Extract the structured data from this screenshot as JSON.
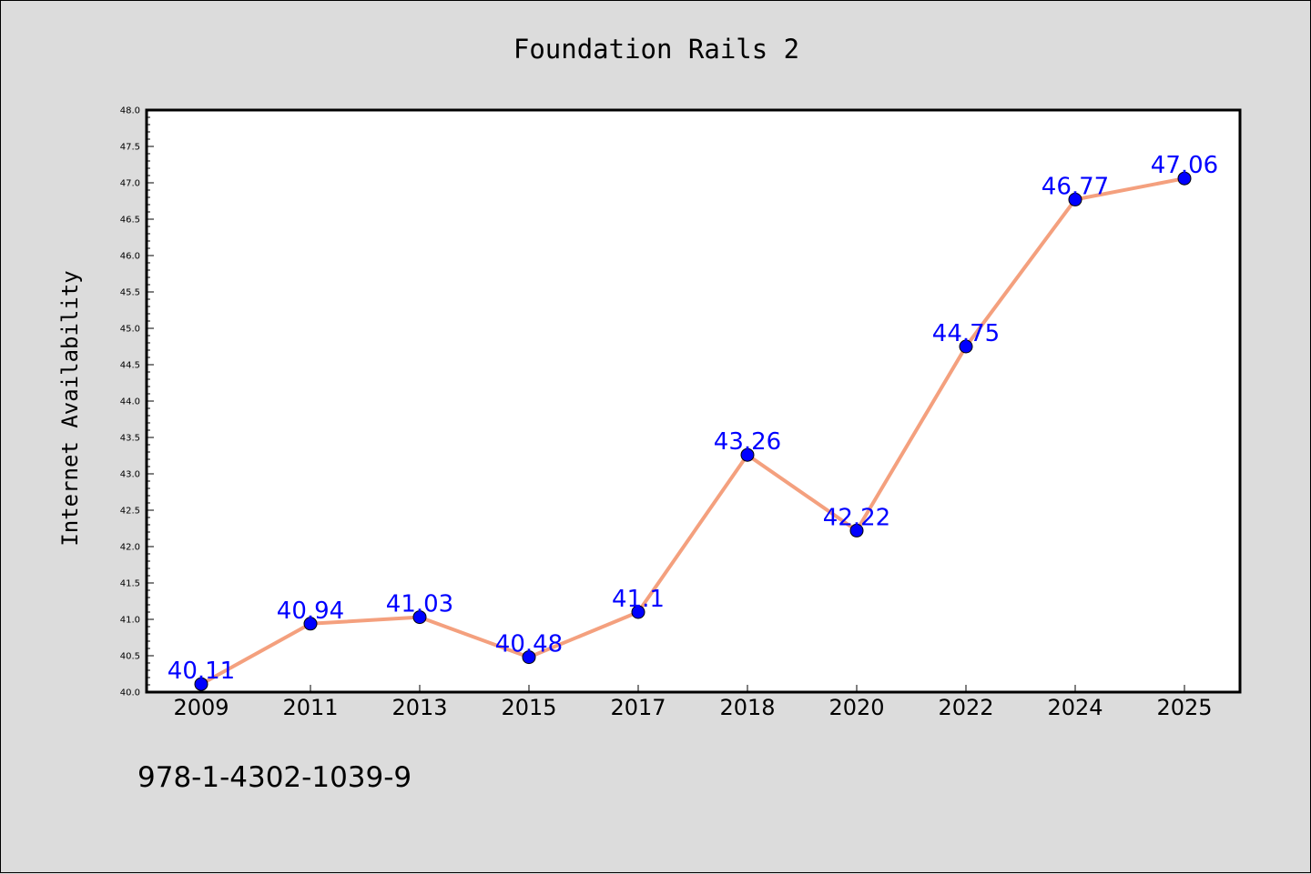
{
  "chart_data": {
    "type": "line",
    "title": "Foundation Rails 2",
    "xlabel": "",
    "ylabel": "Internet Availability",
    "categories": [
      "2009",
      "2011",
      "2013",
      "2015",
      "2017",
      "2018",
      "2020",
      "2022",
      "2024",
      "2025"
    ],
    "series": [
      {
        "values": [
          40.11,
          40.94,
          41.03,
          40.48,
          41.1,
          43.26,
          42.22,
          44.75,
          46.77,
          47.06
        ],
        "data_labels": [
          "40.11",
          "40.94",
          "41.03",
          "40.48",
          "41.1",
          "43.26",
          "42.22",
          "44.75",
          "46.77",
          "47.06"
        ],
        "line_color": "#f4a07e",
        "marker_color": "#0000ff",
        "label_color": "#0000ff"
      }
    ],
    "ylim": [
      40.0,
      48.0
    ],
    "yticks": [
      "40.0",
      "40.5",
      "41.0",
      "41.5",
      "42.0",
      "42.5",
      "43.0",
      "43.5",
      "44.0",
      "44.5",
      "45.0",
      "45.5",
      "46.0",
      "46.5",
      "47.0",
      "47.5",
      "48.0"
    ],
    "grid": false,
    "legend": "none"
  },
  "footnote": "978-1-4302-1039-9",
  "colors": {
    "background": "#dcdcdc",
    "plot_background": "#ffffff",
    "axis": "#000000"
  }
}
